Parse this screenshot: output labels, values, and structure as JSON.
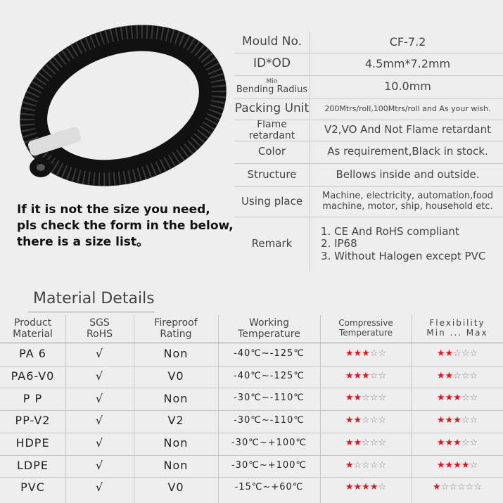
{
  "specs": [
    {
      "label": [
        "Mould No."
      ],
      "value": [
        "CF-7.2"
      ]
    },
    {
      "label": [
        "ID*OD"
      ],
      "value": [
        "4.5mm*7.2mm"
      ]
    },
    {
      "label": [
        "Min",
        "Bending Radius"
      ],
      "value": [
        "10.0mm"
      ]
    },
    {
      "label": [
        "Packing Unit"
      ],
      "value": [
        "200Mtrs/roll,100Mtrs/roll and As your wish."
      ]
    },
    {
      "label": [
        "Flame retardant"
      ],
      "value": [
        "V2,VO And Not Flame retardant"
      ]
    },
    {
      "label": [
        "Color"
      ],
      "value": [
        "As requirement,Black in stock."
      ]
    },
    {
      "label": [
        "Structure"
      ],
      "value": [
        "Bellows inside and outside."
      ]
    },
    {
      "label": [
        "Using place"
      ],
      "value": [
        "Machine, electricity, automation,food",
        "machine, motor, ship, household etc."
      ]
    },
    {
      "label": [
        "Remark"
      ],
      "value": [
        "1. CE And RoHS compliant",
        "2. IP68",
        "3. Without Halogen except PVC"
      ]
    }
  ],
  "note": [
    "If it is not the size you need,",
    "pls check the form in the below,",
    "there is a size list。"
  ],
  "material": {
    "title": "Material Details",
    "header": [
      [
        "Product",
        "Material"
      ],
      [
        "SGS",
        "RoHS"
      ],
      [
        "Fireproof",
        "Rating"
      ],
      [
        "Working",
        "Temperature"
      ],
      [
        "Compressive",
        "Temperature"
      ],
      [
        "Flexibility",
        "Min ... Max"
      ]
    ],
    "rows": [
      [
        "PA 6",
        "√",
        "Non",
        "-40℃~-125℃",
        "★★★☆☆",
        "★★☆☆☆"
      ],
      [
        "PA6-V0",
        "√",
        "V0",
        "-40℃~-125℃",
        "★★★☆☆",
        "★★☆☆☆"
      ],
      [
        "P P",
        "√",
        "Non",
        "-30℃~-110℃",
        "★★☆☆☆",
        "★★★☆☆"
      ],
      [
        "PP-V2",
        "√",
        "V2",
        "-30℃~-110℃",
        "★★☆☆☆",
        "★★★☆☆"
      ],
      [
        "HDPE",
        "√",
        "Non",
        "-30℃~+100℃",
        "★★☆☆☆",
        "★★★☆☆"
      ],
      [
        "LDPE",
        "√",
        "Non",
        "-30℃~+100℃",
        "★☆☆☆☆",
        "★★★★☆"
      ],
      [
        "PVC",
        "√",
        "V0",
        "-15℃~+60℃",
        "★★★★☆",
        "★☆☆☆☆☆"
      ]
    ]
  }
}
